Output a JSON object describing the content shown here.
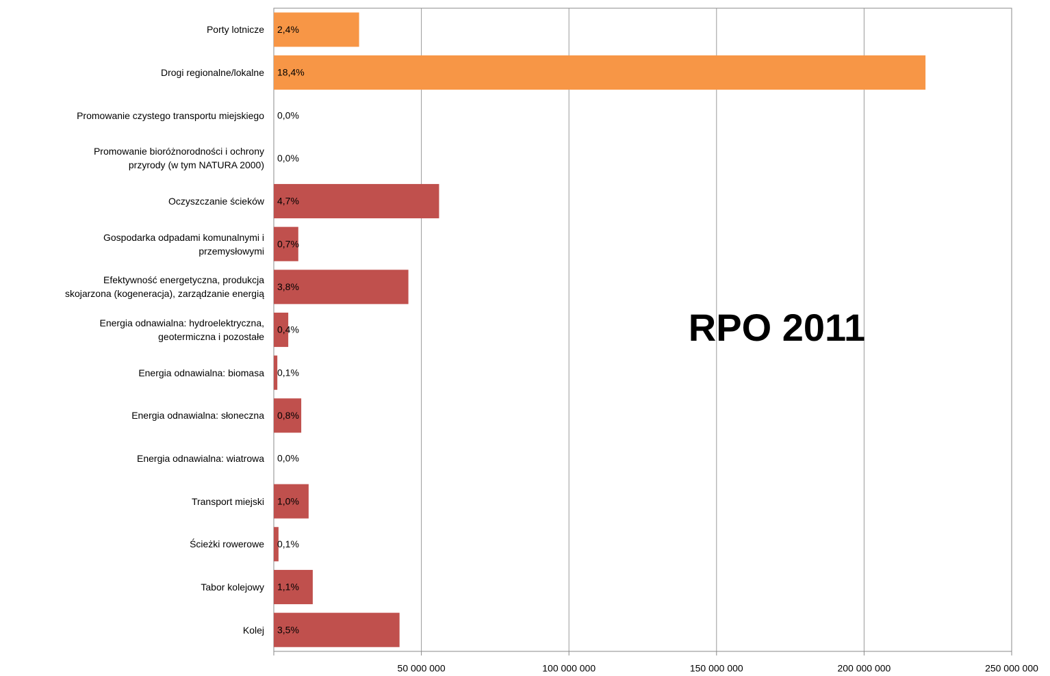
{
  "chart_data": {
    "type": "barh",
    "annotation": "RPO 2011",
    "categories": [
      "Porty lotnicze",
      "Drogi regionalne/lokalne",
      "Promowanie czystego transportu miejskiego",
      "Promowanie bioróżnorodności i ochrony\nprzyrody (w tym NATURA 2000)",
      "Oczyszczanie ścieków",
      "Gospodarka odpadami komunalnymi i\nprzemysłowymi",
      "Efektywność energetyczna, produkcja\nskojarzona (kogeneracja), zarządzanie energią",
      "Energia odnawialna: hydroelektryczna,\ngeotermiczna i pozostałe",
      "Energia odnawialna: biomasa",
      "Energia odnawialna: słoneczna",
      "Energia odnawialna: wiatrowa",
      "Transport miejski",
      "Ścieżki rowerowe",
      "Tabor kolejowy",
      "Kolej"
    ],
    "values": [
      28900000,
      220800000,
      0,
      0,
      56000000,
      8300000,
      45600000,
      4900000,
      1200000,
      9300000,
      0,
      11800000,
      1600000,
      13200000,
      42600000
    ],
    "percent_labels": [
      "2,4%",
      "18,4%",
      "0,0%",
      "0,0%",
      "4,7%",
      "0,7%",
      "3,8%",
      "0,4%",
      "0,1%",
      "0,8%",
      "0,0%",
      "1,0%",
      "0,1%",
      "1,1%",
      "3,5%"
    ],
    "colors": [
      "#f79646",
      "#f79646",
      "#c0504d",
      "#c0504d",
      "#c0504d",
      "#c0504d",
      "#c0504d",
      "#c0504d",
      "#c0504d",
      "#c0504d",
      "#c0504d",
      "#c0504d",
      "#c0504d",
      "#c0504d",
      "#c0504d"
    ],
    "xlim": [
      0,
      250000000
    ],
    "xticks": [
      {
        "value": 50000000,
        "label": "50 000 000"
      },
      {
        "value": 100000000,
        "label": "100 000 000"
      },
      {
        "value": 150000000,
        "label": "150 000 000"
      },
      {
        "value": 200000000,
        "label": "200 000 000"
      },
      {
        "value": 250000000,
        "label": "250 000 000"
      }
    ],
    "grid": true
  }
}
